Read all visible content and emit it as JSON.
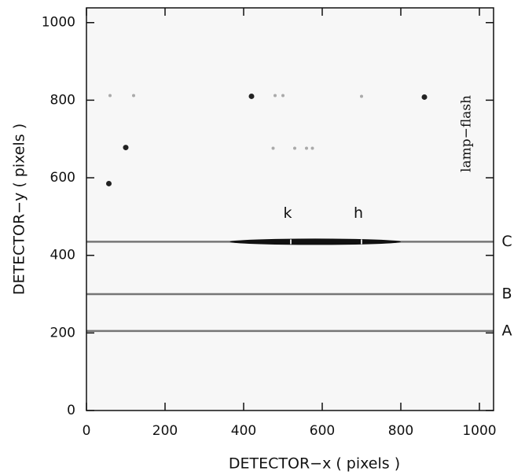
{
  "chart_data": {
    "type": "image",
    "xlabel": "DETECTOR−x  ( pixels )",
    "ylabel": "DETECTOR−y  ( pixels )",
    "xlim": [
      0,
      1036
    ],
    "ylim": [
      0,
      1038
    ],
    "xticks": [
      0,
      200,
      400,
      600,
      800,
      1000
    ],
    "yticks": [
      0,
      200,
      400,
      600,
      800,
      1000
    ],
    "traces": [
      {
        "name": "A",
        "y": 205
      },
      {
        "name": "B",
        "y": 300
      },
      {
        "name": "C",
        "y": 435,
        "bright_region": [
          365,
          800
        ]
      }
    ],
    "lines": [
      {
        "name": "k",
        "x": 520
      },
      {
        "name": "h",
        "x": 700
      }
    ],
    "spots": [
      [
        100,
        678
      ],
      [
        57,
        585
      ],
      [
        420,
        810
      ],
      [
        860,
        808
      ],
      [
        530,
        676
      ],
      [
        475,
        676
      ],
      [
        560,
        676
      ],
      [
        575,
        676
      ],
      [
        60,
        812
      ],
      [
        120,
        812
      ],
      [
        480,
        812
      ],
      [
        500,
        812
      ],
      [
        700,
        810
      ]
    ],
    "annotation": "lamp−flash"
  }
}
